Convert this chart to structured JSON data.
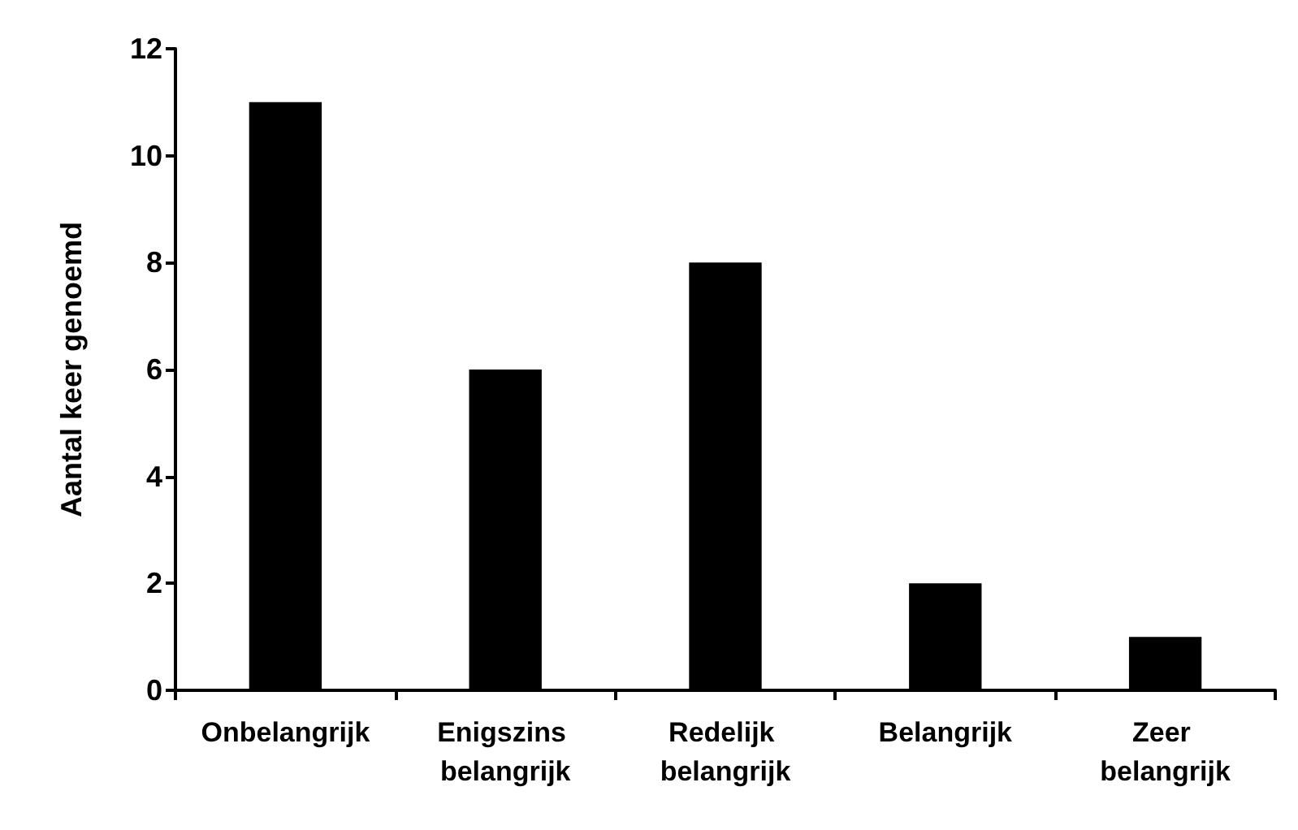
{
  "chart_data": {
    "type": "bar",
    "ylabel": "Aantal keer genoemd",
    "categories": [
      "Onbelangrijk",
      "Enigszins belangrijk",
      "Redelijk belangrijk",
      "Belangrijk",
      "Zeer belangrijk"
    ],
    "values": [
      11,
      6,
      8,
      2,
      1
    ],
    "color": "#000000",
    "ylim": [
      0,
      12
    ],
    "yticks": [
      0,
      2,
      4,
      6,
      8,
      10,
      12
    ],
    "grid": false
  }
}
